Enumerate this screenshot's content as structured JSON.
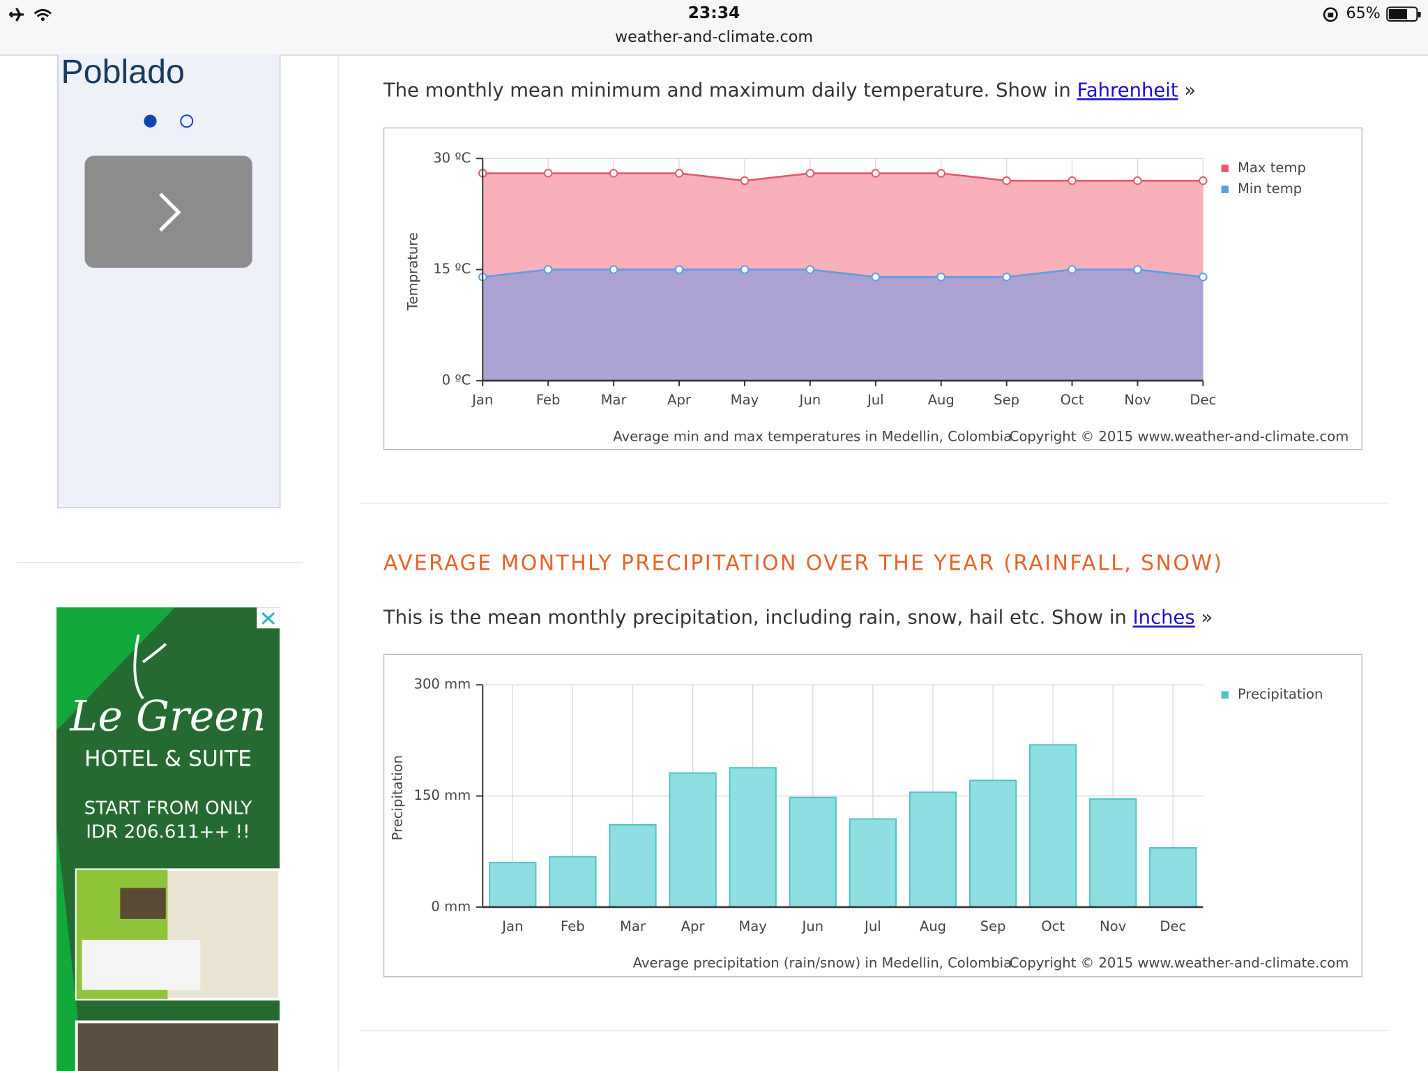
{
  "status_bar": {
    "time": "23:34",
    "url": "weather-and-climate.com",
    "battery": "65%"
  },
  "sidebar": {
    "title": "Poblado"
  },
  "ad": {
    "brand": "Le Green",
    "subtitle": "HOTEL & SUITE",
    "line1": "START FROM ONLY",
    "line2": "IDR 206.611++ !!"
  },
  "temperature_section": {
    "text": "The monthly mean minimum and maximum daily temperature. Show in",
    "link": "Fahrenheit",
    "suffix": "»"
  },
  "precipitation_section": {
    "heading": "AVERAGE MONTHLY PRECIPITATION OVER THE YEAR (RAINFALL, SNOW)",
    "text": "This is the mean monthly precipitation, including rain, snow, hail etc. Show in",
    "link": "Inches",
    "suffix": "»"
  },
  "chart_data": [
    {
      "type": "area",
      "y_label": "Temprature",
      "caption": "Average min and max temperatures in Medellin, Colombia",
      "copyright": "Copyright © 2015 www.weather-and-climate.com",
      "categories": [
        "Jan",
        "Feb",
        "Mar",
        "Apr",
        "May",
        "Jun",
        "Jul",
        "Aug",
        "Sep",
        "Oct",
        "Nov",
        "Dec"
      ],
      "series": [
        {
          "name": "Max temp",
          "color": "#e8566c",
          "fill": "#f9b0ba",
          "values": [
            28,
            28,
            28,
            28,
            27,
            28,
            28,
            28,
            27,
            27,
            27,
            27
          ]
        },
        {
          "name": "Min temp",
          "color": "#5b9ee6",
          "fill": "#aca3d2",
          "values": [
            14,
            15,
            15,
            15,
            15,
            15,
            14,
            14,
            14,
            15,
            15,
            14
          ]
        }
      ],
      "ylim": [
        0,
        30
      ],
      "yticks": [
        {
          "value": 0,
          "label": "0 ºC"
        },
        {
          "value": 15,
          "label": "15 ºC"
        },
        {
          "value": 30,
          "label": "30 ºC"
        }
      ],
      "grid": true,
      "legend": "top-right"
    },
    {
      "type": "bar",
      "y_label": "Precipitation",
      "caption": "Average precipitation (rain/snow) in Medellin, Colombia",
      "copyright": "Copyright © 2015 www.weather-and-climate.com",
      "categories": [
        "Jan",
        "Feb",
        "Mar",
        "Apr",
        "May",
        "Jun",
        "Jul",
        "Aug",
        "Sep",
        "Oct",
        "Nov",
        "Dec"
      ],
      "series": [
        {
          "name": "Precipitation",
          "color": "#8fdee1",
          "edge": "#4cc3c8",
          "values": [
            60,
            68,
            111,
            181,
            188,
            148,
            119,
            155,
            171,
            219,
            146,
            80
          ]
        }
      ],
      "ylim": [
        0,
        300
      ],
      "yticks": [
        {
          "value": 0,
          "label": "0 mm"
        },
        {
          "value": 150,
          "label": "150 mm"
        },
        {
          "value": 300,
          "label": "300 mm"
        }
      ],
      "grid": true,
      "legend": "top-right"
    }
  ]
}
